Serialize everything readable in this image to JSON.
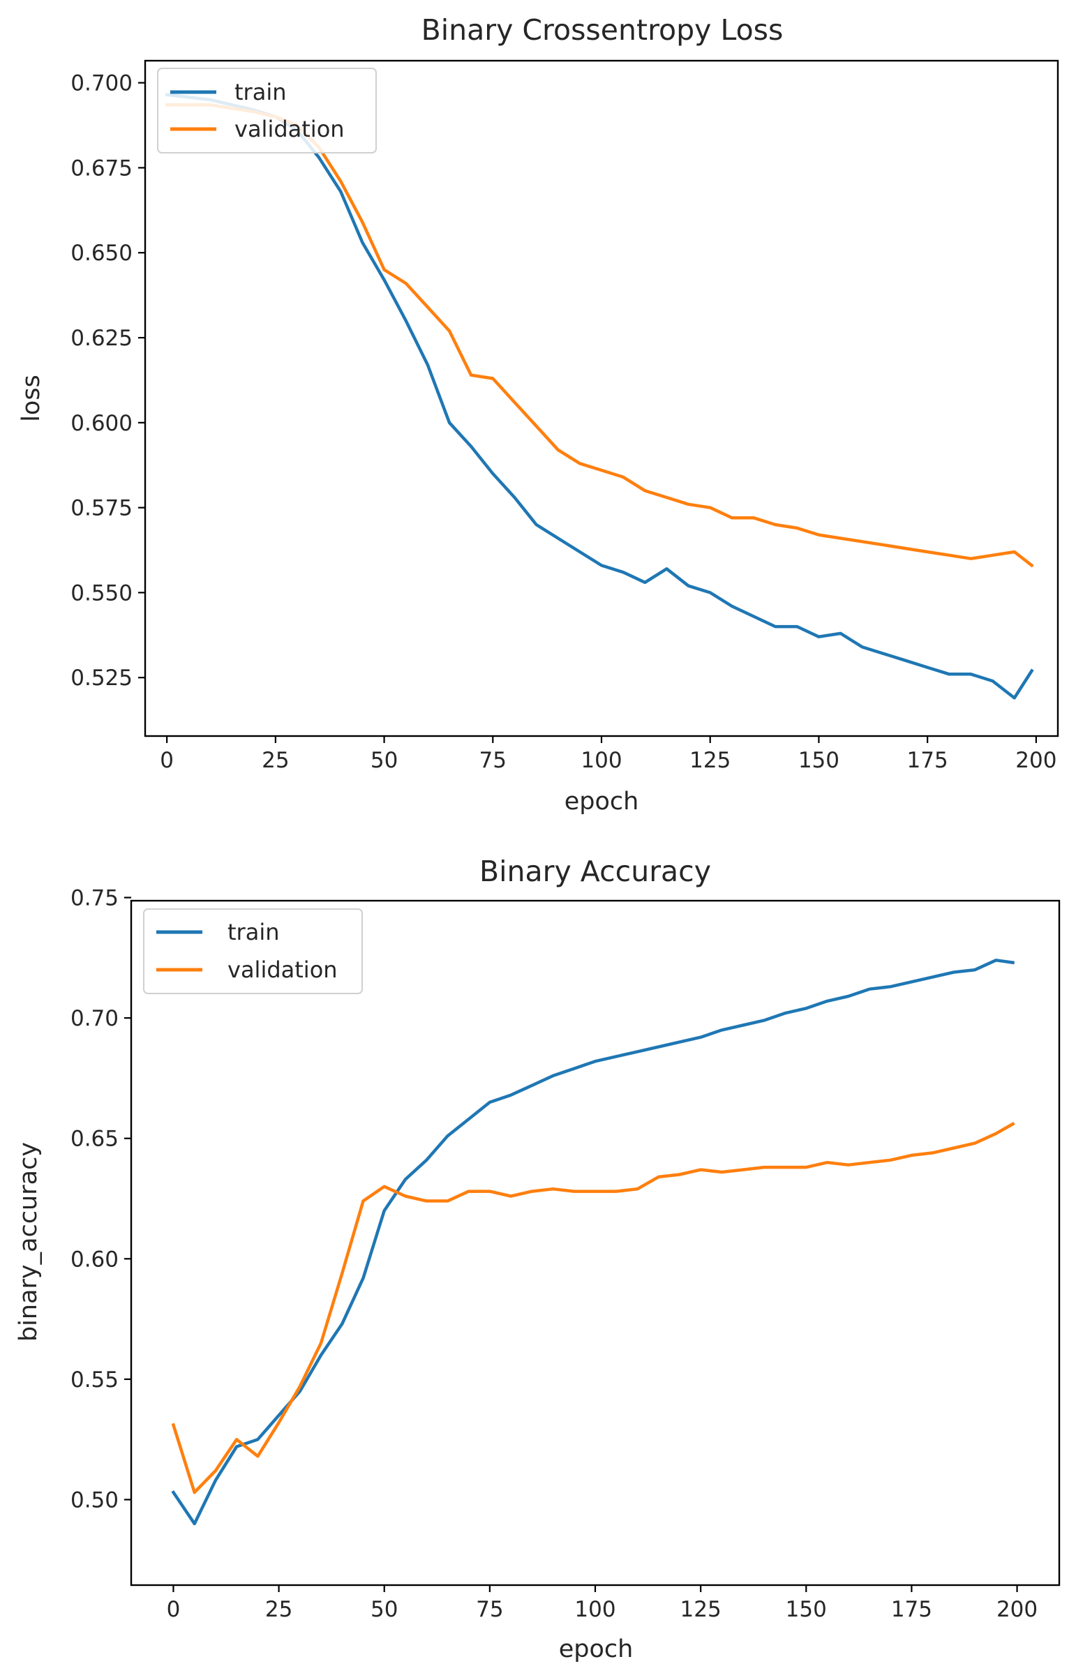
{
  "colors": {
    "train": "#1f77b4",
    "validation": "#ff7f0e"
  },
  "chart_data": [
    {
      "type": "line",
      "title": "Binary Crossentropy Loss",
      "xlabel": "epoch",
      "ylabel": "loss",
      "xlim": [
        -5,
        205
      ],
      "ylim": [
        0.5078,
        0.7065
      ],
      "xticks": [
        0,
        25,
        50,
        75,
        100,
        125,
        150,
        175,
        200
      ],
      "xtick_labels": [
        "0",
        "25",
        "50",
        "75",
        "100",
        "125",
        "150",
        "175",
        "200"
      ],
      "yticks": [
        0.525,
        0.55,
        0.575,
        0.6,
        0.625,
        0.65,
        0.675,
        0.7
      ],
      "ytick_labels": [
        "0.525",
        "0.550",
        "0.575",
        "0.600",
        "0.625",
        "0.650",
        "0.675",
        "0.700"
      ],
      "legend": {
        "position": "upper-left",
        "entries": [
          "train",
          "validation"
        ]
      },
      "series": [
        {
          "name": "train",
          "x": [
            0,
            10,
            20,
            25,
            30,
            35,
            40,
            45,
            50,
            55,
            60,
            65,
            70,
            75,
            80,
            85,
            90,
            95,
            100,
            105,
            110,
            115,
            120,
            125,
            130,
            135,
            140,
            145,
            150,
            155,
            160,
            165,
            170,
            175,
            180,
            185,
            190,
            195,
            199
          ],
          "values": [
            0.6965,
            0.695,
            0.692,
            0.69,
            0.686,
            0.678,
            0.668,
            0.653,
            0.642,
            0.63,
            0.617,
            0.6,
            0.593,
            0.585,
            0.578,
            0.57,
            0.566,
            0.562,
            0.558,
            0.556,
            0.553,
            0.557,
            0.552,
            0.55,
            0.546,
            0.543,
            0.54,
            0.54,
            0.537,
            0.538,
            0.534,
            0.532,
            0.53,
            0.528,
            0.526,
            0.526,
            0.524,
            0.519,
            0.527
          ]
        },
        {
          "name": "validation",
          "x": [
            0,
            10,
            20,
            25,
            30,
            35,
            40,
            45,
            50,
            55,
            60,
            65,
            70,
            75,
            80,
            85,
            90,
            95,
            100,
            105,
            110,
            115,
            120,
            125,
            130,
            135,
            140,
            145,
            150,
            155,
            160,
            165,
            170,
            175,
            180,
            185,
            190,
            195,
            199
          ],
          "values": [
            0.6935,
            0.6935,
            0.6915,
            0.69,
            0.6875,
            0.681,
            0.671,
            0.659,
            0.645,
            0.641,
            0.634,
            0.627,
            0.614,
            0.613,
            0.606,
            0.599,
            0.592,
            0.588,
            0.586,
            0.584,
            0.58,
            0.578,
            0.576,
            0.575,
            0.572,
            0.572,
            0.57,
            0.569,
            0.567,
            0.566,
            0.565,
            0.564,
            0.563,
            0.562,
            0.561,
            0.56,
            0.561,
            0.562,
            0.558
          ]
        }
      ]
    },
    {
      "type": "line",
      "title": "Binary Accuracy",
      "xlabel": "epoch",
      "ylabel": "binary_accuracy",
      "xlim": [
        -10,
        210
      ],
      "ylim": [
        0.4645,
        0.7487
      ],
      "xticks": [
        0,
        25,
        50,
        75,
        100,
        125,
        150,
        175,
        200
      ],
      "xtick_labels": [
        "0",
        "25",
        "50",
        "75",
        "100",
        "125",
        "150",
        "175",
        "200"
      ],
      "yticks": [
        0.5,
        0.55,
        0.6,
        0.65,
        0.7,
        0.75
      ],
      "ytick_labels": [
        "0.50",
        "0.55",
        "0.60",
        "0.65",
        "0.70",
        "0.75"
      ],
      "legend": {
        "position": "upper-left",
        "entries": [
          "train",
          "validation"
        ]
      },
      "series": [
        {
          "name": "train",
          "x": [
            0,
            5,
            10,
            15,
            20,
            25,
            30,
            35,
            40,
            45,
            50,
            55,
            60,
            65,
            70,
            75,
            80,
            85,
            90,
            95,
            100,
            105,
            110,
            115,
            120,
            125,
            130,
            135,
            140,
            145,
            150,
            155,
            160,
            165,
            170,
            175,
            180,
            185,
            190,
            195,
            199
          ],
          "values": [
            0.503,
            0.49,
            0.508,
            0.522,
            0.525,
            0.535,
            0.545,
            0.56,
            0.573,
            0.592,
            0.62,
            0.633,
            0.641,
            0.651,
            0.658,
            0.665,
            0.668,
            0.672,
            0.676,
            0.679,
            0.682,
            0.684,
            0.686,
            0.688,
            0.69,
            0.692,
            0.695,
            0.697,
            0.699,
            0.702,
            0.704,
            0.707,
            0.709,
            0.712,
            0.713,
            0.715,
            0.717,
            0.719,
            0.72,
            0.724,
            0.723
          ]
        },
        {
          "name": "validation",
          "x": [
            0,
            5,
            10,
            15,
            20,
            25,
            30,
            35,
            40,
            45,
            50,
            55,
            60,
            65,
            70,
            75,
            80,
            85,
            90,
            95,
            100,
            105,
            110,
            115,
            120,
            125,
            130,
            135,
            140,
            145,
            150,
            155,
            160,
            165,
            170,
            175,
            180,
            185,
            190,
            195,
            199
          ],
          "values": [
            0.531,
            0.503,
            0.512,
            0.525,
            0.518,
            0.532,
            0.547,
            0.565,
            0.594,
            0.624,
            0.63,
            0.626,
            0.624,
            0.624,
            0.628,
            0.628,
            0.626,
            0.628,
            0.629,
            0.628,
            0.628,
            0.628,
            0.629,
            0.634,
            0.635,
            0.637,
            0.636,
            0.637,
            0.638,
            0.638,
            0.638,
            0.64,
            0.639,
            0.64,
            0.641,
            0.643,
            0.644,
            0.646,
            0.648,
            0.652,
            0.656
          ]
        }
      ]
    }
  ]
}
